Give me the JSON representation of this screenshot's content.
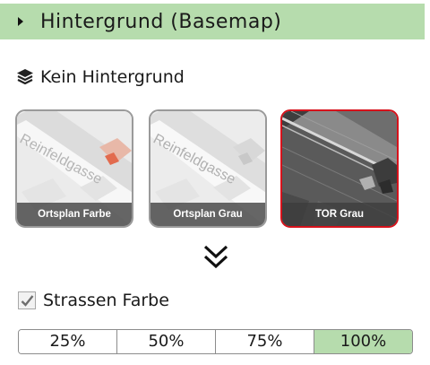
{
  "header": {
    "title": "Hintergrund (Basemap)",
    "bg_color": "#b6dcad"
  },
  "no_background": {
    "label": "Kein Hintergrund",
    "icon": "layers-icon"
  },
  "basemaps": [
    {
      "label": "Ortsplan Farbe",
      "map_text": "Reinfeldgasse",
      "selected": false
    },
    {
      "label": "Ortsplan Grau",
      "map_text": "Reinfeldgasse",
      "selected": false
    },
    {
      "label": "TOR Grau",
      "selected": true
    }
  ],
  "selected_border_color": "#d6121b",
  "expand": {
    "icon": "chevron-double-down-icon"
  },
  "layer": {
    "label": "Strassen Farbe",
    "checked": true
  },
  "opacity": {
    "options": [
      "25%",
      "50%",
      "75%",
      "100%"
    ],
    "active_index": 3
  }
}
